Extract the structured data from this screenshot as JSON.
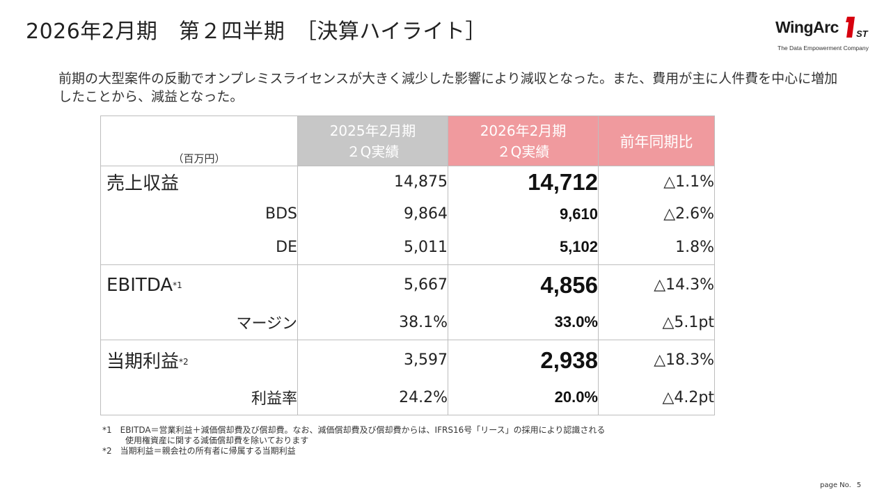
{
  "header": {
    "title": "2026年2月期　第２四半期　［決算ハイライト］"
  },
  "logo": {
    "text": "WingArc",
    "mark_text": "1ST",
    "tagline": "The Data Empowerment Company",
    "brand_color": "#d7000f"
  },
  "summary": "前期の大型案件の反動でオンプレミスライセンスが大きく減少した影響により減収となった。また、費用が主に人件費を中心に増加したことから、減益となった。",
  "table": {
    "unit_label": "（百万円）",
    "prev_header_line1": "2025年2月期",
    "prev_header_line2": "２Q実績",
    "curr_header_line1": "2026年2月期",
    "curr_header_line2": "２Q実績",
    "yoy_header": "前年同期比",
    "colors": {
      "prev_header_bg": "#c7c7c7",
      "curr_header_bg": "#f09a9e"
    },
    "rows": [
      {
        "label": "売上収益",
        "sup": "",
        "prev": "14,875",
        "curr": "14,712",
        "yoy": "△1.1%"
      },
      {
        "label": "BDS",
        "sup": "",
        "prev": "9,864",
        "curr": "9,610",
        "yoy": "△2.6%"
      },
      {
        "label": "DE",
        "sup": "",
        "prev": "5,011",
        "curr": "5,102",
        "yoy": "1.8%"
      },
      {
        "label": "EBITDA",
        "sup": "*1",
        "prev": "5,667",
        "curr": "4,856",
        "yoy": "△14.3%"
      },
      {
        "label": "マージン",
        "sup": "",
        "prev": "38.1%",
        "curr": "33.0%",
        "yoy": "△5.1pt"
      },
      {
        "label": "当期利益",
        "sup": "*2",
        "prev": "3,597",
        "curr": "2,938",
        "yoy": "△18.3%"
      },
      {
        "label": "利益率",
        "sup": "",
        "prev": "24.2%",
        "curr": "20.0%",
        "yoy": "△4.2pt"
      }
    ]
  },
  "notes": {
    "note1_line1": "*1　EBITDA＝営業利益＋減価償却費及び償却費。なお、減価償却費及び償却費からは、IFRS16号「リース」の採用により認識される",
    "note1_line2": "使用権資産に関する減価償却費を除いております",
    "note2": "*2　当期利益＝親会社の所有者に帰属する当期利益"
  },
  "footer": {
    "page_label": "page No.",
    "page_number": "5"
  }
}
